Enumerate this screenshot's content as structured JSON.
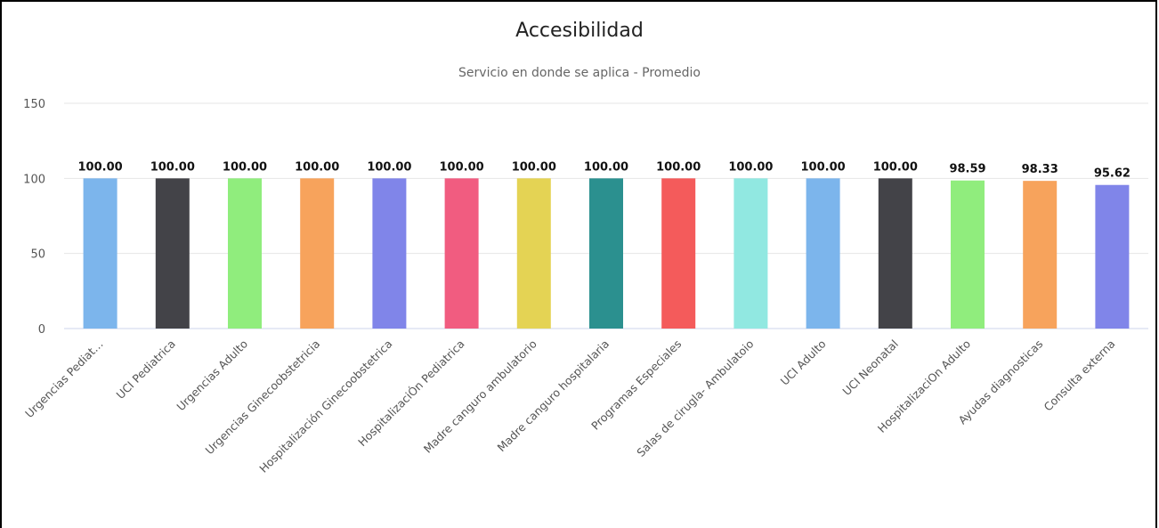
{
  "chart_data": {
    "type": "bar",
    "title": "Accesibilidad",
    "subtitle": "Servicio en donde se aplica - Promedio",
    "xlabel": "",
    "ylabel": "",
    "ylim": [
      0,
      150
    ],
    "yticks": [
      "0",
      "50",
      "100",
      "150"
    ],
    "grid": true,
    "categories": [
      "Urgencias Pediat…",
      "UCI Pediatrica",
      "Urgencias Adulto",
      "Urgencias Ginecoobstetricia",
      "Hospitalización Ginecoobstetrica",
      "HospitalizaciÓn Pediatrica",
      "Madre canguro ambulatorio",
      "Madre canguro hospitalaria",
      "Programas Especiales",
      "Salas de cirugla- Ambulatoio",
      "UCI Adulto",
      "UCI Neonatal",
      "HospitalizaciOn Adulto",
      "Ayudas diagnosticas",
      "Consulta externa"
    ],
    "values": [
      100,
      100,
      100,
      100,
      100,
      100,
      100,
      100,
      100,
      100,
      100,
      100,
      98.59,
      98.33,
      95.62
    ],
    "data_labels": [
      "100.00",
      "100.00",
      "100.00",
      "100.00",
      "100.00",
      "100.00",
      "100.00",
      "100.00",
      "100.00",
      "100.00",
      "100.00",
      "100.00",
      "98.59",
      "98.33",
      "95.62"
    ],
    "colors": [
      "#7cb5ec",
      "#434348",
      "#90ed7d",
      "#f7a35c",
      "#8085e9",
      "#f15c80",
      "#e4d354",
      "#2b908f",
      "#f45b5b",
      "#91e8e1",
      "#7cb5ec",
      "#434348",
      "#90ed7d",
      "#f7a35c",
      "#8085e9"
    ],
    "grid_color": "#e6e6e6",
    "axis_color": "#ccd6eb"
  }
}
